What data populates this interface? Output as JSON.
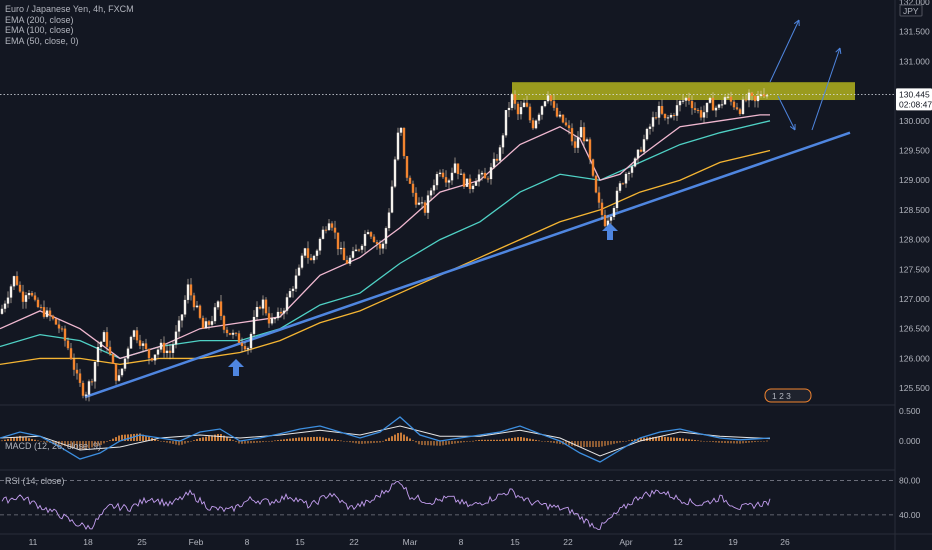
{
  "legend": {
    "title": "Euro / Japanese Yen, 4h, FXCM",
    "ema200": "EMA (200, close)",
    "ema100": "EMA (100, close)",
    "ema50": "EMA (50, close, 0)"
  },
  "macd_label": "MACD (12, 26, close, 9)",
  "rsi_label": "RSI (14, close)",
  "currency": "JPY",
  "events_badge": "1 2 3",
  "colors": {
    "background": "#131722",
    "candle": "#f2842f",
    "ema_pink": "#f0b8d0",
    "ema_teal": "#4fd1c5",
    "ema_yellow": "#f5b533",
    "trendline": "#4f86e0",
    "zone": "#c8c81e",
    "macd": "#3d8fe0",
    "signal": "#e6e6e6",
    "rsi": "#c49ef0"
  },
  "chart_data": {
    "type": "line",
    "title": "Euro / Japanese Yen, 4h, FXCM",
    "y_ticks": [
      "132.000",
      "131.500",
      "131.000",
      "130.000",
      "129.500",
      "129.000",
      "128.500",
      "128.000",
      "127.500",
      "127.000",
      "126.500",
      "126.000",
      "125.500"
    ],
    "ylim": [
      125.3,
      132.0
    ],
    "x_ticks": [
      "11",
      "18",
      "25",
      "Feb",
      "8",
      "15",
      "22",
      "Mar",
      "8",
      "15",
      "22",
      "Apr",
      "12",
      "19",
      "26"
    ],
    "last_price": "130.445",
    "countdown": "02:08:47",
    "series": [
      {
        "name": "EUR/JPY close",
        "x": [
          0,
          8,
          15,
          22,
          28,
          35,
          42,
          50,
          60,
          70,
          78,
          85,
          92,
          98,
          105,
          112,
          118,
          125,
          132,
          140,
          150,
          160,
          170,
          180,
          188,
          195,
          203,
          210,
          218,
          225,
          232,
          240,
          248,
          255,
          262,
          270,
          278,
          285,
          292,
          300,
          305,
          310,
          316,
          322,
          330,
          338,
          345,
          352,
          360,
          368,
          375,
          382,
          390,
          396,
          400,
          405,
          410,
          418,
          425,
          432,
          440,
          448,
          455,
          462,
          470,
          478,
          485,
          492,
          500,
          506,
          512,
          518,
          525,
          532,
          540,
          548,
          555,
          562,
          570,
          575,
          580,
          587,
          595,
          600,
          605,
          612,
          620,
          628,
          635,
          642,
          650,
          658,
          665,
          672,
          680,
          688,
          695,
          702,
          710,
          718,
          725,
          732,
          740,
          748,
          755,
          762,
          768
        ],
        "y": [
          126.75,
          127.1,
          127.4,
          127.0,
          127.2,
          126.9,
          126.8,
          126.7,
          126.5,
          126.1,
          125.6,
          125.4,
          125.7,
          126.2,
          126.4,
          125.9,
          125.6,
          126.0,
          126.5,
          126.3,
          126.0,
          126.2,
          126.1,
          126.6,
          127.2,
          126.9,
          126.5,
          126.6,
          126.9,
          126.5,
          126.4,
          126.3,
          126.2,
          126.7,
          127.0,
          126.6,
          126.7,
          126.9,
          127.2,
          127.5,
          127.9,
          127.6,
          127.8,
          128.1,
          128.4,
          127.9,
          127.6,
          127.7,
          127.9,
          128.2,
          128.0,
          127.8,
          128.6,
          129.5,
          130.0,
          129.2,
          128.9,
          128.6,
          128.5,
          128.9,
          129.2,
          129.0,
          129.3,
          129.0,
          128.9,
          129.1,
          129.0,
          129.2,
          129.5,
          130.1,
          130.4,
          130.1,
          130.3,
          129.9,
          130.2,
          130.5,
          130.1,
          130.0,
          129.8,
          129.5,
          129.9,
          129.6,
          128.8,
          128.5,
          128.3,
          128.5,
          128.9,
          129.2,
          129.3,
          129.6,
          129.9,
          130.2,
          130.0,
          130.1,
          130.3,
          130.4,
          130.2,
          130.1,
          130.3,
          130.2,
          130.4,
          130.3,
          130.2,
          130.4,
          130.3,
          130.5,
          130.45
        ]
      },
      {
        "name": "EMA (50, close, 0)",
        "x": [
          0,
          40,
          80,
          120,
          160,
          200,
          240,
          280,
          320,
          360,
          400,
          440,
          480,
          520,
          560,
          580,
          600,
          620,
          640,
          680,
          720,
          760,
          770
        ],
        "y": [
          126.5,
          126.8,
          126.5,
          126.0,
          126.2,
          126.5,
          126.6,
          126.7,
          127.4,
          127.7,
          128.2,
          128.8,
          129.0,
          129.6,
          129.9,
          129.7,
          129.0,
          129.1,
          129.4,
          129.9,
          130.0,
          130.1,
          130.1
        ]
      },
      {
        "name": "EMA (100, close)",
        "x": [
          0,
          40,
          80,
          120,
          160,
          200,
          240,
          280,
          320,
          360,
          400,
          440,
          480,
          520,
          560,
          600,
          640,
          680,
          720,
          770
        ],
        "y": [
          126.2,
          126.4,
          126.3,
          126.0,
          126.2,
          126.3,
          126.3,
          126.5,
          126.9,
          127.1,
          127.6,
          128.0,
          128.3,
          128.8,
          129.1,
          129.0,
          129.3,
          129.6,
          129.8,
          130.0
        ]
      },
      {
        "name": "EMA (200, close)",
        "x": [
          0,
          40,
          80,
          120,
          160,
          200,
          240,
          280,
          320,
          360,
          400,
          440,
          480,
          520,
          560,
          600,
          640,
          680,
          720,
          770
        ],
        "y": [
          125.9,
          126.0,
          126.0,
          125.9,
          126.0,
          126.0,
          126.1,
          126.3,
          126.6,
          126.8,
          127.1,
          127.4,
          127.7,
          128.0,
          128.3,
          128.5,
          128.8,
          129.0,
          129.3,
          129.5
        ]
      },
      {
        "name": "Trendline",
        "x": [
          85,
          850
        ],
        "y": [
          125.35,
          129.8
        ]
      },
      {
        "name": "Resistance zone",
        "x": [
          512,
          855
        ],
        "y": [
          130.35,
          130.65
        ]
      },
      {
        "name": "MACD",
        "x": [
          0,
          20,
          40,
          60,
          80,
          100,
          120,
          140,
          160,
          180,
          200,
          220,
          240,
          260,
          280,
          300,
          320,
          340,
          360,
          380,
          400,
          420,
          440,
          460,
          480,
          500,
          520,
          540,
          560,
          580,
          600,
          620,
          640,
          660,
          680,
          700,
          720,
          740,
          770
        ],
        "y": [
          0.05,
          0.15,
          0.08,
          -0.1,
          -0.3,
          -0.2,
          0.0,
          0.1,
          0.05,
          0.0,
          0.15,
          0.2,
          0.0,
          0.05,
          0.12,
          0.2,
          0.25,
          0.15,
          0.05,
          0.15,
          0.4,
          0.1,
          0.0,
          0.05,
          0.1,
          0.15,
          0.25,
          0.12,
          0.0,
          -0.2,
          -0.35,
          -0.15,
          0.05,
          0.15,
          0.2,
          0.12,
          0.05,
          0.02,
          0.05
        ]
      },
      {
        "name": "Signal",
        "x": [
          0,
          40,
          80,
          120,
          160,
          200,
          240,
          280,
          320,
          360,
          400,
          440,
          480,
          520,
          560,
          600,
          640,
          680,
          720,
          770
        ],
        "y": [
          0.05,
          0.08,
          -0.15,
          -0.1,
          0.05,
          0.1,
          0.05,
          0.1,
          0.18,
          0.1,
          0.25,
          0.08,
          0.08,
          0.18,
          0.05,
          -0.25,
          0.0,
          0.15,
          0.08,
          0.04
        ]
      },
      {
        "name": "RSI",
        "x": [
          0,
          20,
          40,
          60,
          75,
          90,
          110,
          130,
          150,
          170,
          190,
          210,
          230,
          250,
          270,
          290,
          310,
          330,
          350,
          370,
          390,
          400,
          410,
          430,
          450,
          470,
          490,
          510,
          530,
          550,
          570,
          590,
          600,
          620,
          640,
          660,
          680,
          700,
          720,
          740,
          770
        ],
        "y": [
          55,
          62,
          50,
          40,
          30,
          25,
          50,
          48,
          60,
          52,
          65,
          48,
          45,
          58,
          55,
          62,
          50,
          65,
          48,
          55,
          72,
          80,
          62,
          55,
          60,
          50,
          58,
          68,
          55,
          50,
          45,
          30,
          25,
          45,
          62,
          68,
          58,
          52,
          60,
          48,
          55
        ]
      }
    ],
    "macd_ticks": [
      "0.500",
      "0.000"
    ],
    "rsi_ticks": [
      "80.00",
      "40.00"
    ]
  }
}
